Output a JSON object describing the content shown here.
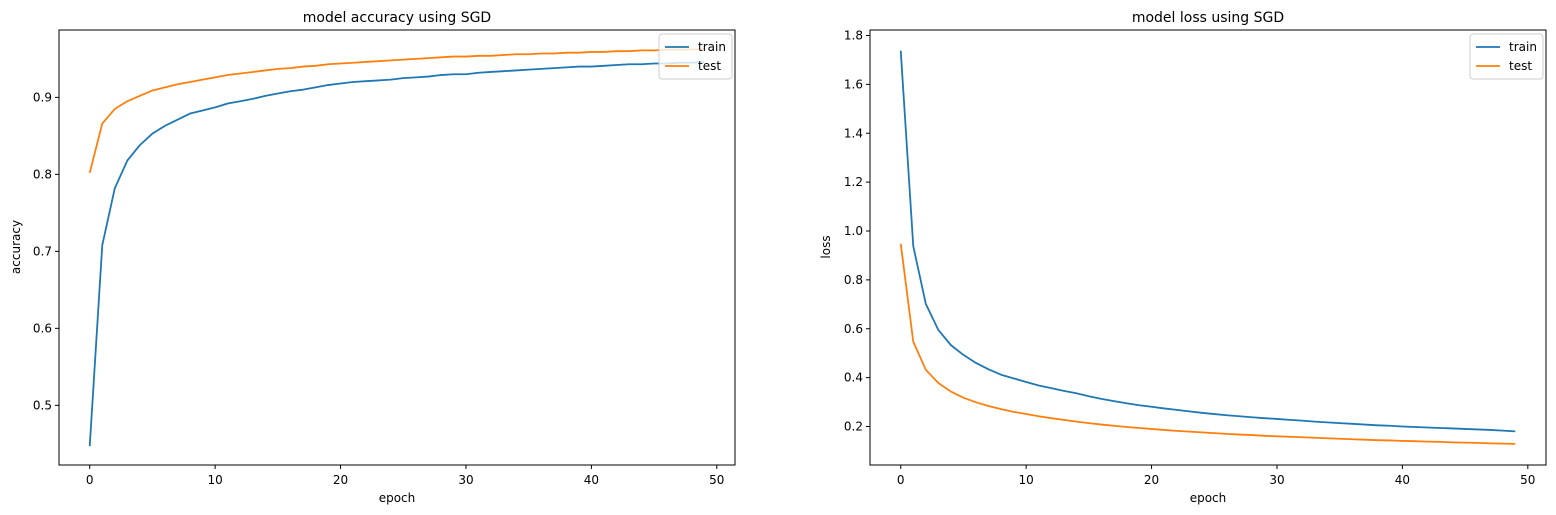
{
  "chart_data": [
    {
      "type": "line",
      "title": "model accuracy using SGD",
      "xlabel": "epoch",
      "ylabel": "accuracy",
      "xlim": [
        -2.45,
        51.45
      ],
      "ylim": [
        0.4225,
        0.9875
      ],
      "xticks": [
        0,
        10,
        20,
        30,
        40,
        50
      ],
      "yticks": [
        0.5,
        0.6,
        0.7,
        0.8,
        0.9
      ],
      "ytick_labels": [
        "0.5",
        "0.6",
        "0.7",
        "0.8",
        "0.9"
      ],
      "grid": false,
      "legend": "upper right",
      "x": [
        0,
        1,
        2,
        3,
        4,
        5,
        6,
        7,
        8,
        9,
        10,
        11,
        12,
        13,
        14,
        15,
        16,
        17,
        18,
        19,
        20,
        21,
        22,
        23,
        24,
        25,
        26,
        27,
        28,
        29,
        30,
        31,
        32,
        33,
        34,
        35,
        36,
        37,
        38,
        39,
        40,
        41,
        42,
        43,
        44,
        45,
        46,
        47,
        48,
        49
      ],
      "series": [
        {
          "name": "train",
          "color": "#1f77b4",
          "values": [
            0.447,
            0.708,
            0.782,
            0.818,
            0.838,
            0.853,
            0.863,
            0.871,
            0.879,
            0.883,
            0.887,
            0.892,
            0.895,
            0.898,
            0.902,
            0.905,
            0.908,
            0.91,
            0.913,
            0.916,
            0.918,
            0.92,
            0.921,
            0.922,
            0.923,
            0.925,
            0.926,
            0.927,
            0.929,
            0.93,
            0.93,
            0.932,
            0.933,
            0.934,
            0.935,
            0.936,
            0.937,
            0.938,
            0.939,
            0.94,
            0.94,
            0.941,
            0.942,
            0.943,
            0.943,
            0.944,
            0.944,
            0.945,
            0.945,
            0.946
          ]
        },
        {
          "name": "test",
          "color": "#ff7f0e",
          "values": [
            0.802,
            0.866,
            0.885,
            0.895,
            0.902,
            0.909,
            0.913,
            0.917,
            0.92,
            0.923,
            0.926,
            0.929,
            0.931,
            0.933,
            0.935,
            0.937,
            0.938,
            0.94,
            0.941,
            0.943,
            0.944,
            0.945,
            0.946,
            0.947,
            0.948,
            0.949,
            0.95,
            0.951,
            0.952,
            0.953,
            0.953,
            0.954,
            0.954,
            0.955,
            0.956,
            0.956,
            0.957,
            0.957,
            0.958,
            0.958,
            0.959,
            0.959,
            0.96,
            0.96,
            0.961,
            0.961,
            0.962,
            0.962,
            0.962,
            0.963
          ]
        }
      ]
    },
    {
      "type": "line",
      "title": "model loss using SGD",
      "xlabel": "epoch",
      "ylabel": "loss",
      "xlim": [
        -2.45,
        51.45
      ],
      "ylim": [
        0.0425,
        1.8225
      ],
      "xticks": [
        0,
        10,
        20,
        30,
        40,
        50
      ],
      "yticks": [
        0.2,
        0.4,
        0.6,
        0.8,
        1.0,
        1.2,
        1.4,
        1.6,
        1.8
      ],
      "ytick_labels": [
        "0.2",
        "0.4",
        "0.6",
        "0.8",
        "1.0",
        "1.2",
        "1.4",
        "1.6",
        "1.8"
      ],
      "grid": false,
      "legend": "upper right",
      "x": [
        0,
        1,
        2,
        3,
        4,
        5,
        6,
        7,
        8,
        9,
        10,
        11,
        12,
        13,
        14,
        15,
        16,
        17,
        18,
        19,
        20,
        21,
        22,
        23,
        24,
        25,
        26,
        27,
        28,
        29,
        30,
        31,
        32,
        33,
        34,
        35,
        36,
        37,
        38,
        39,
        40,
        41,
        42,
        43,
        44,
        45,
        46,
        47,
        48,
        49
      ],
      "series": [
        {
          "name": "train",
          "color": "#1f77b4",
          "values": [
            1.738,
            0.938,
            0.702,
            0.595,
            0.533,
            0.493,
            0.46,
            0.434,
            0.412,
            0.397,
            0.382,
            0.368,
            0.357,
            0.346,
            0.336,
            0.324,
            0.313,
            0.304,
            0.295,
            0.287,
            0.281,
            0.274,
            0.268,
            0.262,
            0.256,
            0.251,
            0.246,
            0.242,
            0.238,
            0.234,
            0.231,
            0.227,
            0.224,
            0.22,
            0.217,
            0.214,
            0.211,
            0.208,
            0.205,
            0.203,
            0.2,
            0.198,
            0.196,
            0.194,
            0.192,
            0.19,
            0.188,
            0.186,
            0.183,
            0.18
          ]
        },
        {
          "name": "test",
          "color": "#ff7f0e",
          "values": [
            0.948,
            0.547,
            0.432,
            0.378,
            0.343,
            0.318,
            0.299,
            0.284,
            0.271,
            0.26,
            0.251,
            0.242,
            0.234,
            0.227,
            0.22,
            0.214,
            0.208,
            0.203,
            0.198,
            0.194,
            0.19,
            0.186,
            0.182,
            0.179,
            0.176,
            0.173,
            0.17,
            0.167,
            0.165,
            0.162,
            0.16,
            0.158,
            0.156,
            0.154,
            0.152,
            0.15,
            0.148,
            0.146,
            0.144,
            0.143,
            0.141,
            0.14,
            0.138,
            0.137,
            0.135,
            0.134,
            0.133,
            0.131,
            0.13,
            0.129
          ]
        }
      ]
    }
  ]
}
